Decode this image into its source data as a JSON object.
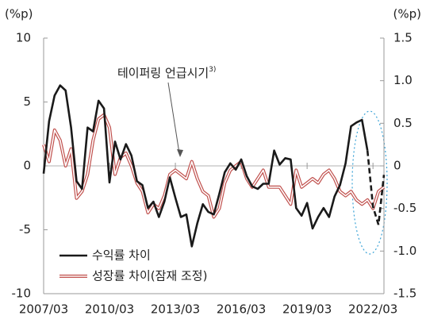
{
  "chart_data": {
    "type": "line",
    "annotation": {
      "text": "테이퍼링 언급시기",
      "note": "3)"
    },
    "y_unit": "(%p)",
    "y2_unit": "(%p)",
    "categories": [
      "2007/03",
      null,
      null,
      null,
      null,
      null,
      null,
      null,
      null,
      null,
      null,
      null,
      "2010/03",
      null,
      null,
      null,
      null,
      null,
      null,
      null,
      null,
      null,
      null,
      null,
      "2013/03",
      null,
      null,
      null,
      null,
      null,
      null,
      null,
      null,
      null,
      null,
      null,
      "2016/03",
      null,
      null,
      null,
      null,
      null,
      null,
      null,
      null,
      null,
      null,
      null,
      "2019/03",
      null,
      null,
      null,
      null,
      null,
      null,
      null,
      null,
      null,
      null,
      null,
      "2022/03",
      null,
      null
    ],
    "ylim": [
      -10,
      10
    ],
    "yticks": [
      -10,
      -5,
      0,
      5,
      10
    ],
    "y2lim": [
      -1.5,
      1.5
    ],
    "y2ticks": [
      -1.5,
      {
        "value": -1.0,
        "label": "-1.0"
      },
      -0.5,
      0,
      0.5,
      {
        "value": 1.0,
        "label": "1.0"
      },
      1.5
    ],
    "series": [
      {
        "name": "수익률 차이",
        "color": "#1a1a1a",
        "dash_start": 59,
        "values": [
          -0.6,
          3.5,
          5.5,
          6.3,
          5.9,
          3.0,
          -1.2,
          -1.8,
          3.0,
          2.7,
          5.1,
          4.5,
          -1.3,
          1.9,
          0.5,
          1.7,
          0.8,
          -1.2,
          -1.5,
          -3.3,
          -2.8,
          -4.0,
          -2.8,
          -0.9,
          -2.5,
          -4.0,
          -3.8,
          -6.3,
          -4.5,
          -3.0,
          -3.6,
          -3.8,
          -2.2,
          -0.5,
          0.2,
          -0.3,
          0.5,
          -0.8,
          -1.6,
          -1.8,
          -1.4,
          -1.4,
          1.2,
          0.1,
          0.6,
          0.5,
          -3.3,
          -3.9,
          -2.9,
          -4.9,
          -4.0,
          -3.3,
          -4.0,
          -2.4,
          -1.5,
          0.2,
          3.1,
          3.4,
          3.6,
          1.2,
          -3.2,
          -4.6,
          -0.7
        ]
      },
      {
        "name": "성장률 차이(잠재 조정)",
        "color": "#c0504d",
        "axis": "y2",
        "values": [
          0.25,
          0.05,
          0.42,
          0.3,
          0.0,
          0.2,
          -0.38,
          -0.3,
          -0.1,
          0.3,
          0.55,
          0.6,
          0.45,
          -0.1,
          0.1,
          0.15,
          0.0,
          -0.2,
          -0.3,
          -0.55,
          -0.45,
          -0.5,
          -0.35,
          -0.1,
          -0.05,
          -0.1,
          -0.15,
          0.05,
          -0.15,
          -0.3,
          -0.35,
          -0.6,
          -0.5,
          -0.2,
          -0.05,
          0.0,
          0.05,
          -0.15,
          -0.25,
          -0.15,
          -0.05,
          -0.25,
          -0.25,
          -0.25,
          -0.35,
          -0.45,
          -0.05,
          -0.25,
          -0.2,
          -0.15,
          -0.2,
          -0.1,
          -0.05,
          -0.15,
          -0.3,
          -0.35,
          -0.3,
          -0.4,
          -0.45,
          -0.4,
          -0.5,
          -0.3,
          -0.25
        ]
      }
    ]
  }
}
